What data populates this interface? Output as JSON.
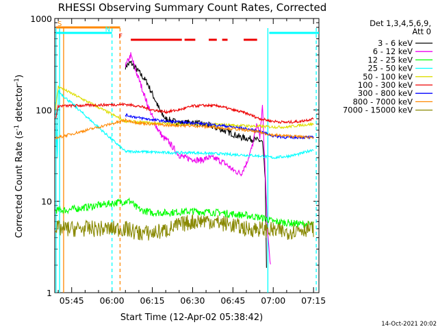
{
  "chart_data": {
    "type": "line",
    "title": "RHESSI Observing Summary Count Rates, Corrected",
    "xlabel": "Start Time (12-Apr-02 05:38:42)",
    "ylabel": "Corrected Count Rate (s⁻¹ detector⁻¹)",
    "ylabel_parts": [
      "Corrected Count Rate (s",
      "-1",
      " detector",
      "-1",
      ")"
    ],
    "y_scale": "log",
    "ylim": [
      1,
      1000
    ],
    "y_ticks": [
      {
        "v": 1,
        "label": "1"
      },
      {
        "v": 10,
        "label": "10"
      },
      {
        "v": 100,
        "label": "100"
      },
      {
        "v": 1000,
        "label": "1000"
      }
    ],
    "xlim": [
      "05:38:42",
      "07:17:00"
    ],
    "x_ticks": [
      "05:45",
      "06:00",
      "06:15",
      "06:30",
      "06:45",
      "07:00",
      "07:15"
    ],
    "legend_header": [
      "Det 1,3,4,5,6,9,",
      "Att 0"
    ],
    "legend_position": "right",
    "series": [
      {
        "name": "3 - 6 keV",
        "color": "#000000",
        "points": [
          [
            "06:05",
            300
          ],
          [
            "06:07",
            330
          ],
          [
            "06:10",
            260
          ],
          [
            "06:13",
            200
          ],
          [
            "06:16",
            130
          ],
          [
            "06:18",
            95
          ],
          [
            "06:20",
            80
          ],
          [
            "06:23",
            75
          ],
          [
            "06:26",
            72
          ],
          [
            "06:30",
            73
          ],
          [
            "06:33",
            70
          ],
          [
            "06:36",
            68
          ],
          [
            "06:40",
            62
          ],
          [
            "06:44",
            56
          ],
          [
            "06:48",
            50
          ],
          [
            "06:52",
            48
          ],
          [
            "06:55",
            46
          ],
          [
            "06:56",
            44
          ],
          [
            "06:57",
            18
          ],
          [
            "06:57:30",
            2
          ]
        ]
      },
      {
        "name": "6 - 12 keV",
        "color": "#ee00ee",
        "points": [
          [
            "06:05",
            300
          ],
          [
            "06:07",
            400
          ],
          [
            "06:09",
            260
          ],
          [
            "06:11",
            180
          ],
          [
            "06:13",
            120
          ],
          [
            "06:15",
            85
          ],
          [
            "06:17",
            62
          ],
          [
            "06:19",
            50
          ],
          [
            "06:21",
            45
          ],
          [
            "06:23",
            38
          ],
          [
            "06:25",
            32
          ],
          [
            "06:27",
            30
          ],
          [
            "06:30",
            29
          ],
          [
            "06:33",
            28
          ],
          [
            "06:36",
            30
          ],
          [
            "06:39",
            29
          ],
          [
            "06:42",
            26
          ],
          [
            "06:45",
            22
          ],
          [
            "06:48",
            20
          ],
          [
            "06:50",
            26
          ],
          [
            "06:52",
            38
          ],
          [
            "06:54",
            70
          ],
          [
            "06:55",
            50
          ],
          [
            "06:56",
            110
          ],
          [
            "06:58",
            4
          ],
          [
            "06:59",
            2
          ]
        ]
      },
      {
        "name": "12 - 25 keV",
        "color": "#00ff00",
        "points": [
          [
            "05:39",
            8
          ],
          [
            "05:41",
            8
          ],
          [
            "05:43",
            8
          ],
          [
            "06:05",
            10
          ],
          [
            "06:07",
            10
          ],
          [
            "06:09",
            8.5
          ],
          [
            "06:11",
            8
          ],
          [
            "06:15",
            7.5
          ],
          [
            "06:20",
            7.5
          ],
          [
            "06:30",
            7.8
          ],
          [
            "06:40",
            7.5
          ],
          [
            "06:50",
            7
          ],
          [
            "06:57",
            6.5
          ],
          [
            "07:00",
            6
          ],
          [
            "07:15",
            5.5
          ]
        ]
      },
      {
        "name": "25 - 50 keV",
        "color": "#00ffff",
        "points": [
          [
            "05:39",
            120
          ],
          [
            "05:39:40",
            30
          ],
          [
            "05:40",
            160
          ],
          [
            "06:05",
            35
          ],
          [
            "06:10",
            35
          ],
          [
            "06:20",
            34
          ],
          [
            "06:30",
            34
          ],
          [
            "06:40",
            33
          ],
          [
            "06:50",
            32
          ],
          [
            "06:57",
            31
          ],
          [
            "07:00",
            30
          ],
          [
            "07:05",
            31
          ],
          [
            "07:10",
            33
          ],
          [
            "07:15",
            37
          ]
        ]
      },
      {
        "name": "50 - 100 keV",
        "color": "#dddd00",
        "points": [
          [
            "05:39",
            100
          ],
          [
            "05:40",
            180
          ],
          [
            "06:05",
            75
          ],
          [
            "06:15",
            72
          ],
          [
            "06:25",
            70
          ],
          [
            "06:35",
            70
          ],
          [
            "06:45",
            68
          ],
          [
            "06:55",
            66
          ],
          [
            "07:00",
            65
          ],
          [
            "07:05",
            65
          ],
          [
            "07:10",
            68
          ],
          [
            "07:15",
            70
          ]
        ]
      },
      {
        "name": "100 - 300 keV",
        "color": "#ee0000",
        "points": [
          [
            "05:39",
            80
          ],
          [
            "05:40",
            110
          ],
          [
            "06:05",
            115
          ],
          [
            "06:10",
            110
          ],
          [
            "06:15",
            100
          ],
          [
            "06:20",
            95
          ],
          [
            "06:25",
            100
          ],
          [
            "06:30",
            110
          ],
          [
            "06:35",
            112
          ],
          [
            "06:40",
            110
          ],
          [
            "06:45",
            100
          ],
          [
            "06:50",
            92
          ],
          [
            "06:55",
            80
          ],
          [
            "07:00",
            75
          ],
          [
            "07:05",
            73
          ],
          [
            "07:10",
            75
          ],
          [
            "07:15",
            80
          ]
        ]
      },
      {
        "name": "300 - 800 keV",
        "color": "#0000ff",
        "points": [
          [
            "06:05",
            88
          ],
          [
            "06:10",
            82
          ],
          [
            "06:15",
            78
          ],
          [
            "06:20",
            75
          ],
          [
            "06:30",
            72
          ],
          [
            "06:40",
            68
          ],
          [
            "06:50",
            62
          ],
          [
            "06:55",
            58
          ],
          [
            "07:00",
            52
          ],
          [
            "07:05",
            50
          ],
          [
            "07:10",
            50
          ],
          [
            "07:15",
            50
          ]
        ]
      },
      {
        "name": "800 - 7000 keV",
        "color": "#ff8800",
        "points": [
          [
            "05:39",
            50
          ],
          [
            "05:40",
            50
          ],
          [
            "06:05",
            77
          ],
          [
            "06:10",
            72
          ],
          [
            "06:15",
            70
          ],
          [
            "06:20",
            68
          ],
          [
            "06:30",
            67
          ],
          [
            "06:40",
            64
          ],
          [
            "06:50",
            60
          ],
          [
            "06:55",
            57
          ],
          [
            "07:00",
            53
          ],
          [
            "07:05",
            52
          ],
          [
            "07:10",
            51
          ],
          [
            "07:15",
            50
          ]
        ]
      },
      {
        "name": "7000 - 15000 keV",
        "color": "#888800",
        "points": [
          [
            "05:39",
            5
          ],
          [
            "05:40",
            5
          ],
          [
            "06:05",
            5
          ],
          [
            "06:10",
            4.5
          ],
          [
            "06:15",
            4.5
          ],
          [
            "06:20",
            4.8
          ],
          [
            "06:25",
            5.5
          ],
          [
            "06:30",
            6
          ],
          [
            "06:35",
            6.2
          ],
          [
            "06:40",
            5.8
          ],
          [
            "06:45",
            5.5
          ],
          [
            "06:50",
            5
          ],
          [
            "06:55",
            5
          ],
          [
            "07:00",
            4.8
          ],
          [
            "07:05",
            4.6
          ],
          [
            "07:10",
            5
          ],
          [
            "07:15",
            5
          ]
        ]
      }
    ],
    "flags": [
      {
        "label": "S",
        "color": "#ff8800",
        "bar": [
          "05:38:42",
          "06:03:00"
        ]
      },
      {
        "label": "N",
        "color": "#00ffff",
        "bar": [
          "05:38:42",
          "06:00:00"
        ]
      },
      {
        "label": "F",
        "color": "#ee0000",
        "segments": [
          [
            "06:07",
            "06:26"
          ],
          [
            "06:27",
            "06:31"
          ],
          [
            "06:36",
            "06:39"
          ],
          [
            "06:41",
            "06:43"
          ],
          [
            "06:49",
            "06:54"
          ]
        ]
      },
      {
        "label": "",
        "color": "#00ffff",
        "bar": [
          "06:58:00",
          "07:17:00"
        ]
      }
    ],
    "vlines": [
      {
        "t": "05:39:10",
        "color": "#00ffff",
        "style": "solid"
      },
      {
        "t": "05:40:30",
        "color": "#00ffff",
        "style": "solid"
      },
      {
        "t": "05:42:00",
        "color": "#ff8800",
        "style": "solid"
      },
      {
        "t": "06:00:00",
        "color": "#00ffff",
        "style": "dashed"
      },
      {
        "t": "06:03:00",
        "color": "#ff8800",
        "style": "dashed"
      },
      {
        "t": "06:58:00",
        "color": "#00ffff",
        "style": "solid"
      },
      {
        "t": "07:16:00",
        "color": "#00ffff",
        "style": "dashed"
      }
    ]
  },
  "timestamp": "14-Oct-2021 20:02"
}
